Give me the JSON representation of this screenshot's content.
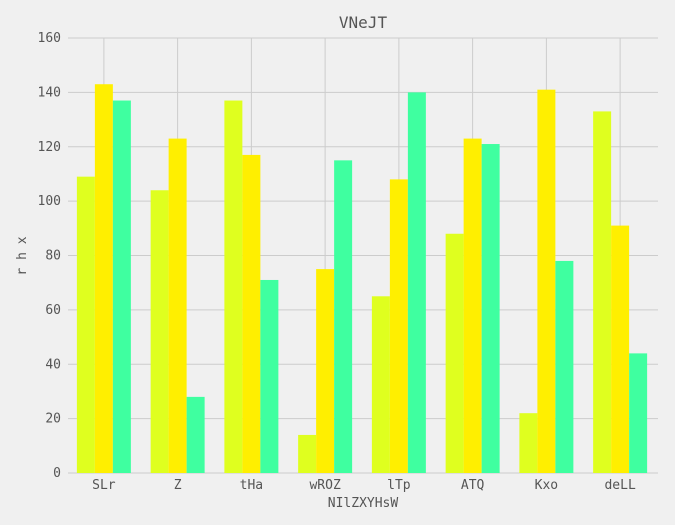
{
  "chart_data": {
    "type": "bar",
    "title": "VNeJT",
    "xlabel": "NIlZXYHsW",
    "ylabel": "r h x",
    "categories": [
      "SLr",
      "Z",
      "tHa",
      "wROZ",
      "lTp",
      "ATQ",
      "Kxo",
      "deLL"
    ],
    "series": [
      {
        "values": [
          109,
          104,
          137,
          14,
          65,
          88,
          22,
          133
        ],
        "color": "#dfff1f"
      },
      {
        "values": [
          143,
          123,
          117,
          75,
          108,
          123,
          141,
          91
        ],
        "color": "#ffef00"
      },
      {
        "values": [
          137,
          28,
          71,
          115,
          140,
          121,
          78,
          44
        ],
        "color": "#3fffa0"
      }
    ],
    "ylim": [
      0,
      160
    ],
    "yticks": [
      0,
      20,
      40,
      60,
      80,
      100,
      120,
      140,
      160
    ],
    "grid": true,
    "background": "#f0f0f0",
    "grid_color": "#cccccc"
  }
}
